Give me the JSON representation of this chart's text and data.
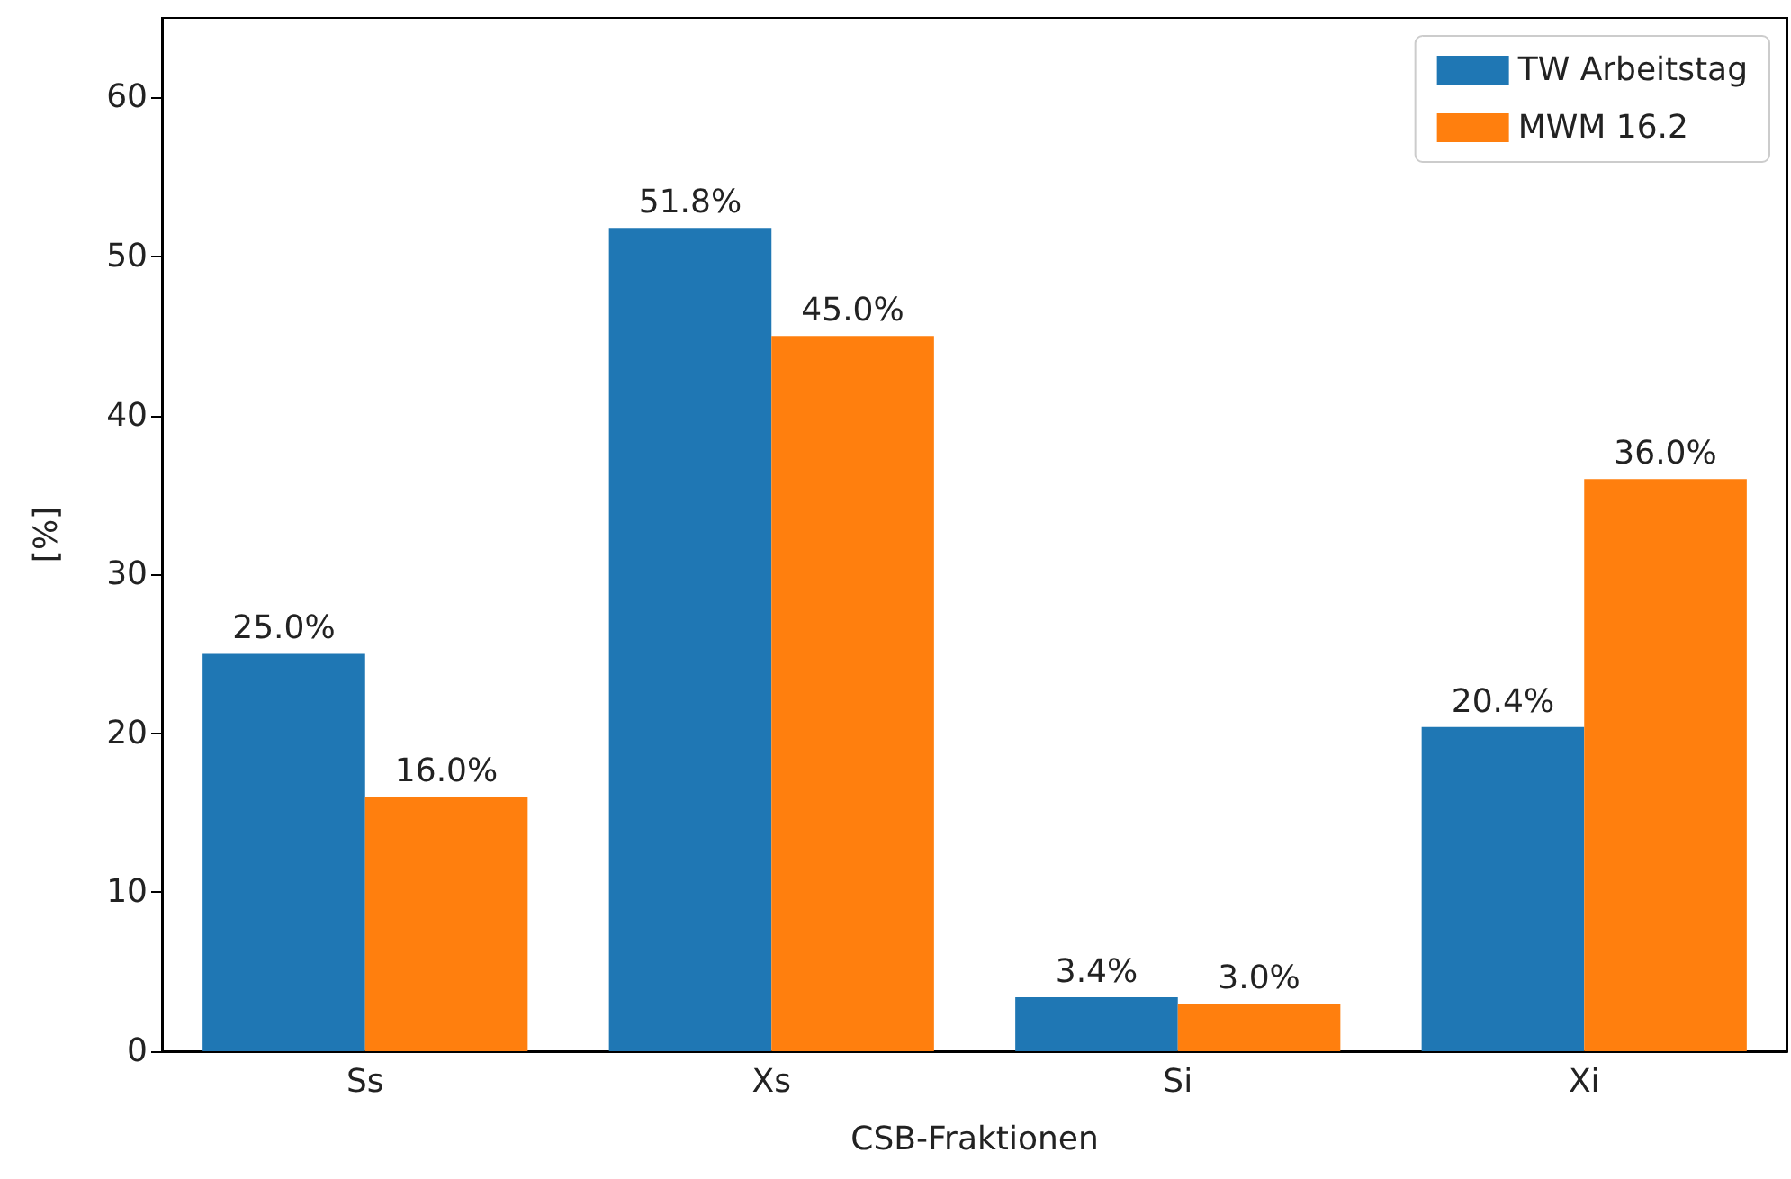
{
  "chart_data": {
    "type": "bar",
    "xlabel": "CSB-Fraktionen",
    "ylabel": "[%]",
    "categories": [
      "Ss",
      "Xs",
      "Si",
      "Xi"
    ],
    "series": [
      {
        "name": "TW Arbeitstag",
        "color": "#1f77b4",
        "values": [
          25.0,
          51.8,
          3.4,
          20.4
        ],
        "value_labels": [
          "25.0%",
          "51.8%",
          "3.4%",
          "20.4%"
        ]
      },
      {
        "name": "MWM 16.2",
        "color": "#ff7f0e",
        "values": [
          16.0,
          45.0,
          3.0,
          36.0
        ],
        "value_labels": [
          "16.0%",
          "45.0%",
          "3.0%",
          "36.0%"
        ]
      }
    ],
    "ylim": [
      0,
      65
    ],
    "yticks": [
      0,
      10,
      20,
      30,
      40,
      50,
      60
    ],
    "grid": false,
    "legend": "top right"
  }
}
